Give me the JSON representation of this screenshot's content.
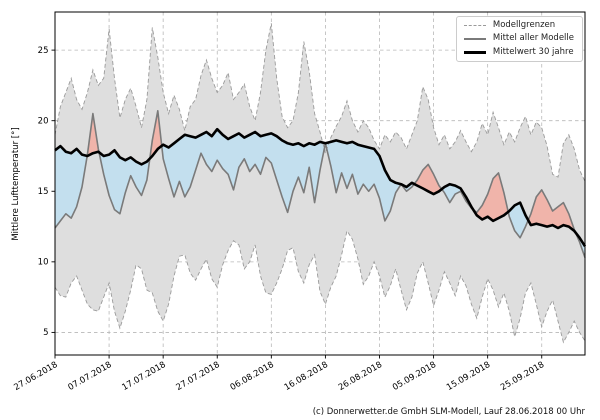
{
  "page": {
    "background": "#ffffff"
  },
  "footer": {
    "credit": "(c) Donnerwetter.de GmbH SLM-Modell, Lauf 28.06.2018 00 Uhr"
  },
  "chart_data": {
    "type": "line",
    "title": "",
    "xlabel": "",
    "ylabel": "Mittlere Lufttemperatur [°]",
    "ylim": [
      3.4,
      27.7
    ],
    "yticks": [
      5,
      10,
      15,
      20,
      25
    ],
    "grid": true,
    "days": 99,
    "start_date": "27.06.2018",
    "run_label": "Lauf 28.06.2018 00 Uhr",
    "xtick_days": [
      0,
      10,
      20,
      30,
      40,
      50,
      60,
      70,
      80,
      90
    ],
    "xtick_labels": [
      "27.06.2018",
      "07.07.2018",
      "17.07.2018",
      "27.07.2018",
      "06.08.2018",
      "16.08.2018",
      "26.08.2018",
      "05.09.2018",
      "15.09.2018",
      "25.09.2018"
    ],
    "legend": {
      "position": "top-right",
      "entries": [
        {
          "label": "Modellgrenzen",
          "style": "dashed-gray"
        },
        {
          "label": "Mittel aller Modelle",
          "style": "solid-gray"
        },
        {
          "label": "Mittelwert 30 jahre",
          "style": "solid-black-thick"
        }
      ]
    },
    "colors": {
      "band": "#dedede",
      "band_edge": "#9a9a9a",
      "model_mean": "#7a7a7a",
      "mean30": "#000000",
      "warmer_fill": "#f0b4aa",
      "colder_fill": "#c3dfee",
      "grid": "#b8b8b8",
      "frame": "#000000"
    },
    "series": [
      {
        "name": "Modellgrenzen (obere Grenze)",
        "values": [
          19.0,
          21.0,
          22.0,
          23.0,
          21.5,
          20.8,
          22.0,
          23.6,
          22.5,
          23.0,
          26.5,
          23.0,
          20.2,
          21.5,
          22.3,
          21.0,
          19.5,
          21.5,
          26.6,
          24.5,
          22.0,
          20.5,
          21.8,
          20.8,
          19.3,
          21.0,
          21.5,
          23.2,
          24.3,
          23.0,
          22.0,
          22.5,
          23.4,
          21.5,
          22.0,
          22.6,
          21.0,
          20.0,
          22.0,
          25.0,
          26.9,
          23.0,
          20.3,
          19.5,
          20.0,
          22.0,
          25.6,
          23.5,
          20.5,
          19.2,
          17.7,
          18.8,
          19.6,
          20.3,
          21.4,
          20.0,
          19.2,
          20.0,
          19.5,
          18.6,
          18.0,
          19.0,
          18.5,
          19.2,
          18.8,
          18.0,
          19.0,
          20.0,
          22.4,
          21.5,
          19.5,
          18.3,
          19.0,
          18.0,
          18.5,
          19.3,
          18.5,
          17.8,
          18.5,
          19.8,
          19.0,
          20.6,
          19.5,
          18.3,
          19.2,
          18.5,
          19.5,
          20.3,
          19.0,
          19.9,
          19.5,
          18.2,
          16.2,
          16.0,
          18.4,
          19.0,
          18.0,
          16.5,
          15.7
        ]
      },
      {
        "name": "Modellgrenzen (untere Grenze)",
        "values": [
          8.2,
          7.6,
          7.5,
          8.5,
          9.0,
          8.0,
          7.0,
          6.6,
          6.5,
          7.5,
          8.5,
          6.5,
          5.3,
          6.5,
          8.0,
          9.8,
          9.5,
          8.0,
          7.8,
          6.5,
          5.8,
          7.0,
          9.0,
          10.4,
          10.5,
          9.2,
          8.7,
          9.5,
          10.2,
          8.8,
          8.2,
          9.8,
          10.8,
          11.5,
          11.2,
          9.5,
          10.0,
          11.2,
          9.0,
          7.8,
          7.7,
          8.5,
          9.5,
          10.8,
          11.0,
          9.3,
          8.5,
          9.8,
          10.5,
          7.9,
          7.0,
          8.2,
          9.0,
          10.5,
          12.2,
          11.6,
          10.2,
          8.4,
          9.0,
          10.0,
          9.0,
          7.5,
          8.3,
          9.5,
          8.0,
          6.6,
          7.5,
          9.2,
          10.0,
          8.5,
          6.9,
          8.0,
          9.3,
          8.5,
          7.6,
          9.0,
          8.3,
          7.0,
          6.0,
          7.5,
          8.8,
          8.0,
          6.8,
          7.8,
          6.5,
          4.7,
          6.0,
          7.8,
          8.5,
          7.0,
          5.4,
          6.5,
          7.3,
          5.8,
          4.3,
          5.0,
          5.8,
          5.0,
          4.4
        ]
      },
      {
        "name": "Mittel aller Modelle",
        "values": [
          12.4,
          12.9,
          13.4,
          13.1,
          13.9,
          15.3,
          17.6,
          20.5,
          18.0,
          16.2,
          14.7,
          13.7,
          13.4,
          14.9,
          16.1,
          15.3,
          14.7,
          15.8,
          18.6,
          20.7,
          17.3,
          15.9,
          14.6,
          15.7,
          14.6,
          15.3,
          16.5,
          17.7,
          16.9,
          16.4,
          17.2,
          16.6,
          16.2,
          15.1,
          16.7,
          17.3,
          16.4,
          16.9,
          16.2,
          17.4,
          17.0,
          15.8,
          14.6,
          13.5,
          15.0,
          16.0,
          14.9,
          16.7,
          14.2,
          16.5,
          18.4,
          16.8,
          14.9,
          16.3,
          15.2,
          16.2,
          14.8,
          15.5,
          15.0,
          15.5,
          14.5,
          12.9,
          13.6,
          14.9,
          15.5,
          15.0,
          15.3,
          15.8,
          16.5,
          16.9,
          16.2,
          15.4,
          14.9,
          14.2,
          14.8,
          15.0,
          14.3,
          13.8,
          13.5,
          14.0,
          14.8,
          15.9,
          16.3,
          14.9,
          13.2,
          12.2,
          11.7,
          12.5,
          13.4,
          14.6,
          15.1,
          14.4,
          13.6,
          13.9,
          14.2,
          13.4,
          12.3,
          11.4,
          10.3
        ]
      },
      {
        "name": "Mittelwert 30 jahre",
        "values": [
          17.9,
          18.2,
          17.8,
          17.7,
          18.0,
          17.6,
          17.5,
          17.7,
          17.8,
          17.5,
          17.6,
          17.9,
          17.4,
          17.2,
          17.4,
          17.1,
          16.9,
          17.1,
          17.5,
          18.0,
          18.3,
          18.1,
          18.4,
          18.7,
          19.0,
          18.9,
          18.8,
          19.0,
          19.2,
          18.9,
          19.4,
          19.0,
          18.7,
          18.9,
          19.1,
          18.8,
          19.0,
          19.2,
          18.9,
          19.0,
          19.1,
          18.9,
          18.6,
          18.4,
          18.3,
          18.4,
          18.2,
          18.4,
          18.3,
          18.5,
          18.4,
          18.5,
          18.6,
          18.5,
          18.4,
          18.5,
          18.3,
          18.2,
          18.1,
          18.0,
          17.5,
          16.5,
          15.8,
          15.6,
          15.5,
          15.3,
          15.6,
          15.4,
          15.2,
          15.0,
          14.8,
          15.0,
          15.3,
          15.5,
          15.4,
          15.2,
          14.6,
          13.9,
          13.3,
          13.0,
          13.2,
          12.9,
          13.1,
          13.3,
          13.6,
          14.0,
          14.2,
          13.3,
          12.6,
          12.7,
          12.6,
          12.5,
          12.6,
          12.4,
          12.6,
          12.5,
          12.2,
          11.7,
          11.1
        ]
      }
    ]
  }
}
